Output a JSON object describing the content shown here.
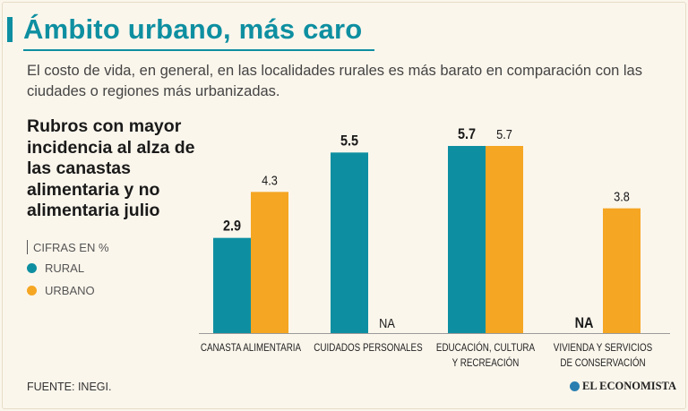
{
  "header": {
    "title": "Ámbito urbano, más caro",
    "subtitle": "El costo de vida, en general, en las localidades rurales es más barato en comparación con las ciudades o regiones más urbanizadas."
  },
  "sidebar": {
    "chart_title": "Rubros con mayor incidencia al alza de las canastas alimentaria y no alimentaria julio",
    "units": "CIFRAS EN %"
  },
  "footer": {
    "source": "FUENTE: INEGI.",
    "brand": "EL ECONOMISTA"
  },
  "colors": {
    "rural": "#0e8fa1",
    "urbano": "#f5a623",
    "accent": "#0e8fa1"
  },
  "chart_data": {
    "type": "bar",
    "title": "Rubros con mayor incidencia al alza de las canastas alimentaria y no alimentaria julio",
    "ylabel": "CIFRAS EN %",
    "ylim": [
      0,
      6
    ],
    "grid": false,
    "legend": "left",
    "categories": [
      [
        "CANASTA ALIMENTARIA"
      ],
      [
        "CUIDADOS PERSONALES"
      ],
      [
        "EDUCACIÓN, CULTURA",
        "Y RECREACIÓN"
      ],
      [
        "VIVIENDA Y SERVICIOS",
        "DE CONSERVACIÓN"
      ]
    ],
    "series": [
      {
        "name": "RURAL",
        "color": "#0e8fa1",
        "values": [
          2.9,
          5.5,
          5.7,
          null
        ],
        "labels": [
          "2.9",
          "5.5",
          "5.7",
          "NA"
        ]
      },
      {
        "name": "URBANO",
        "color": "#f5a623",
        "values": [
          4.3,
          null,
          5.7,
          3.8
        ],
        "labels": [
          "4.3",
          "NA",
          "5.7",
          "3.8"
        ]
      }
    ]
  }
}
